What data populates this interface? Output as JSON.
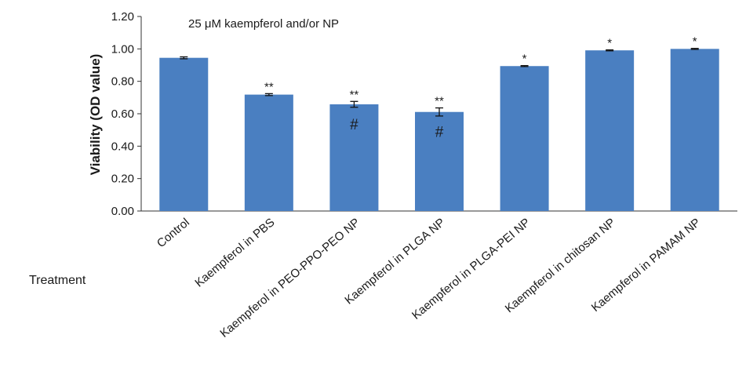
{
  "chart_data": {
    "type": "bar",
    "annotation": "25 μM kaempferol and/or NP",
    "xlabel": "Treatment",
    "ylabel": "Viability (OD value)",
    "ylim": [
      0,
      1.2
    ],
    "yticks": [
      "0.00",
      "0.20",
      "0.40",
      "0.60",
      "0.80",
      "1.00",
      "1.20"
    ],
    "grid": false,
    "bar_color": "#4a7fc1",
    "categories": [
      "Control",
      "Kaempferol in PBS",
      "Kaempferol in PEO-PPO-PEO NP",
      "Kaempferol in PLGA NP",
      "Kaempferol in PLGA-PEI NP",
      "Kaempferol in chitosan NP",
      "Kaempferol in PAMAM NP"
    ],
    "values": [
      0.945,
      0.718,
      0.658,
      0.611,
      0.894,
      0.991,
      1.0
    ],
    "errors": [
      0.006,
      0.006,
      0.018,
      0.025,
      0.003,
      0.003,
      0.003
    ],
    "significance": [
      "",
      "**",
      "**",
      "**",
      "*",
      "*",
      "*"
    ],
    "hash_marks": [
      "",
      "",
      "#",
      "#",
      "",
      "",
      ""
    ]
  }
}
